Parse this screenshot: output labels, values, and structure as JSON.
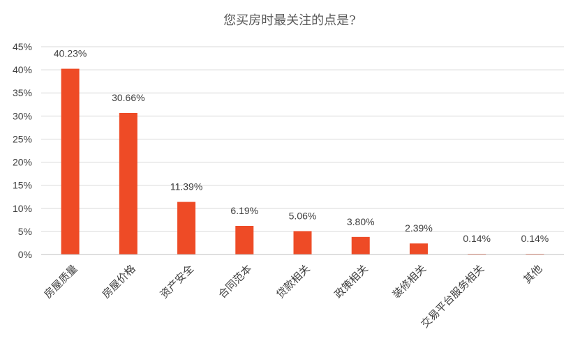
{
  "chart_data": {
    "type": "bar",
    "title": "您买房时最关注的点是?",
    "categories": [
      "房屋质量",
      "房屋价格",
      "资产安全",
      "合同范本",
      "贷款相关",
      "政策相关",
      "装修相关",
      "交易平台服务相关",
      "其他"
    ],
    "values": [
      40.23,
      30.66,
      11.39,
      6.19,
      5.06,
      3.8,
      2.39,
      0.14,
      0.14
    ],
    "data_labels": [
      "40.23%",
      "30.66%",
      "11.39%",
      "6.19%",
      "5.06%",
      "3.80%",
      "2.39%",
      "0.14%",
      "0.14%"
    ],
    "y_ticks": [
      "0%",
      "5%",
      "10%",
      "15%",
      "20%",
      "25%",
      "30%",
      "35%",
      "40%",
      "45%"
    ],
    "ylim": [
      0,
      45
    ],
    "grid": true,
    "legend": "none",
    "xlabel": "",
    "ylabel": "",
    "bar_color": "#ee4b26",
    "grid_color": "#d9d9d9"
  }
}
